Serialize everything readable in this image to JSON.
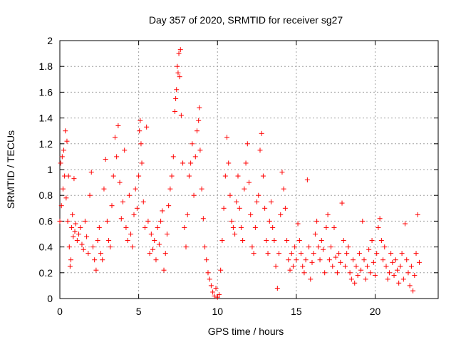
{
  "chart_data": {
    "type": "scatter",
    "title": "Day 357 of 2020, SRMTID for receiver sg27",
    "xlabel": "GPS time / hours",
    "ylabel": "SRMTID / TECUs",
    "xlim": [
      0,
      24
    ],
    "ylim": [
      0,
      2
    ],
    "xticks": [
      0,
      5,
      10,
      15,
      20
    ],
    "xtick_labels": [
      "0",
      "5",
      "10",
      "15",
      "20"
    ],
    "yticks": [
      0,
      0.2,
      0.4,
      0.6,
      0.8,
      1,
      1.2,
      1.4,
      1.6,
      1.8,
      2
    ],
    "ytick_labels": [
      "0",
      "0.2",
      "0.4",
      "0.6",
      "0.8",
      "1",
      "1.2",
      "1.4",
      "1.6",
      "1.8",
      "2"
    ],
    "grid": true,
    "marker": "+",
    "marker_color": "#ff0000",
    "series": [
      {
        "name": "sg27",
        "points": [
          [
            0.0,
            0.6
          ],
          [
            0.05,
            1.05
          ],
          [
            0.1,
            0.72
          ],
          [
            0.15,
            1.1
          ],
          [
            0.2,
            0.85
          ],
          [
            0.25,
            1.15
          ],
          [
            0.3,
            0.95
          ],
          [
            0.35,
            1.3
          ],
          [
            0.4,
            0.78
          ],
          [
            0.45,
            1.22
          ],
          [
            0.5,
            0.6
          ],
          [
            0.55,
            0.95
          ],
          [
            0.6,
            0.4
          ],
          [
            0.65,
            0.25
          ],
          [
            0.7,
            0.3
          ],
          [
            0.75,
            0.55
          ],
          [
            0.8,
            0.65
          ],
          [
            0.85,
            0.48
          ],
          [
            0.9,
            0.93
          ],
          [
            0.95,
            0.52
          ],
          [
            1.0,
            0.58
          ],
          [
            1.1,
            0.45
          ],
          [
            1.2,
            0.5
          ],
          [
            1.3,
            0.55
          ],
          [
            1.4,
            0.42
          ],
          [
            1.5,
            0.38
          ],
          [
            1.6,
            0.6
          ],
          [
            1.7,
            0.48
          ],
          [
            1.8,
            0.35
          ],
          [
            1.9,
            0.8
          ],
          [
            2.0,
            0.98
          ],
          [
            2.1,
            0.4
          ],
          [
            2.2,
            0.3
          ],
          [
            2.3,
            0.22
          ],
          [
            2.4,
            0.45
          ],
          [
            2.5,
            0.55
          ],
          [
            2.6,
            0.35
          ],
          [
            2.7,
            0.3
          ],
          [
            2.8,
            0.85
          ],
          [
            2.9,
            1.08
          ],
          [
            3.0,
            0.6
          ],
          [
            3.1,
            0.45
          ],
          [
            3.2,
            0.4
          ],
          [
            3.3,
            0.72
          ],
          [
            3.4,
            0.95
          ],
          [
            3.5,
            1.25
          ],
          [
            3.6,
            1.1
          ],
          [
            3.7,
            1.34
          ],
          [
            3.8,
            0.9
          ],
          [
            3.9,
            0.62
          ],
          [
            4.0,
            0.75
          ],
          [
            4.1,
            1.15
          ],
          [
            4.2,
            0.55
          ],
          [
            4.3,
            0.45
          ],
          [
            4.4,
            0.8
          ],
          [
            4.5,
            0.5
          ],
          [
            4.6,
            0.4
          ],
          [
            4.7,
            0.65
          ],
          [
            4.8,
            0.85
          ],
          [
            4.9,
            0.7
          ],
          [
            5.0,
            0.95
          ],
          [
            5.05,
            1.3
          ],
          [
            5.1,
            1.38
          ],
          [
            5.15,
            1.2
          ],
          [
            5.2,
            1.05
          ],
          [
            5.3,
            0.75
          ],
          [
            5.4,
            0.55
          ],
          [
            5.5,
            1.33
          ],
          [
            5.6,
            0.6
          ],
          [
            5.7,
            0.35
          ],
          [
            5.8,
            0.5
          ],
          [
            5.9,
            0.38
          ],
          [
            6.0,
            0.45
          ],
          [
            6.1,
            0.3
          ],
          [
            6.2,
            0.55
          ],
          [
            6.3,
            0.42
          ],
          [
            6.4,
            0.6
          ],
          [
            6.5,
            0.68
          ],
          [
            6.6,
            0.22
          ],
          [
            6.7,
            0.35
          ],
          [
            6.8,
            0.5
          ],
          [
            6.9,
            0.72
          ],
          [
            7.0,
            0.85
          ],
          [
            7.1,
            0.95
          ],
          [
            7.2,
            1.1
          ],
          [
            7.3,
            1.45
          ],
          [
            7.35,
            1.55
          ],
          [
            7.4,
            1.62
          ],
          [
            7.45,
            1.8
          ],
          [
            7.5,
            1.75
          ],
          [
            7.55,
            1.9
          ],
          [
            7.6,
            1.72
          ],
          [
            7.65,
            1.93
          ],
          [
            7.7,
            1.42
          ],
          [
            7.8,
            1.05
          ],
          [
            7.9,
            0.55
          ],
          [
            8.0,
            0.4
          ],
          [
            8.1,
            0.65
          ],
          [
            8.2,
            0.95
          ],
          [
            8.3,
            1.05
          ],
          [
            8.4,
            1.2
          ],
          [
            8.5,
            0.8
          ],
          [
            8.6,
            1.1
          ],
          [
            8.7,
            1.3
          ],
          [
            8.8,
            1.38
          ],
          [
            8.85,
            1.48
          ],
          [
            8.9,
            1.15
          ],
          [
            9.0,
            0.85
          ],
          [
            9.1,
            0.62
          ],
          [
            9.2,
            0.4
          ],
          [
            9.3,
            0.3
          ],
          [
            9.4,
            0.2
          ],
          [
            9.5,
            0.15
          ],
          [
            9.6,
            0.1
          ],
          [
            9.7,
            0.05
          ],
          [
            9.8,
            0.02
          ],
          [
            9.9,
            0.08
          ],
          [
            10.0,
            0.01
          ],
          [
            10.1,
            0.03
          ],
          [
            10.2,
            0.22
          ],
          [
            10.3,
            0.45
          ],
          [
            10.4,
            0.7
          ],
          [
            10.5,
            0.95
          ],
          [
            10.6,
            1.25
          ],
          [
            10.7,
            1.05
          ],
          [
            10.8,
            0.8
          ],
          [
            10.9,
            0.6
          ],
          [
            11.0,
            0.55
          ],
          [
            11.1,
            0.5
          ],
          [
            11.2,
            0.75
          ],
          [
            11.3,
            0.95
          ],
          [
            11.4,
            0.7
          ],
          [
            11.5,
            0.55
          ],
          [
            11.6,
            0.45
          ],
          [
            11.7,
            0.85
          ],
          [
            11.8,
            1.05
          ],
          [
            11.9,
            1.2
          ],
          [
            12.0,
            0.9
          ],
          [
            12.1,
            0.65
          ],
          [
            12.2,
            0.4
          ],
          [
            12.3,
            0.35
          ],
          [
            12.4,
            0.55
          ],
          [
            12.5,
            0.75
          ],
          [
            12.6,
            0.8
          ],
          [
            12.7,
            1.15
          ],
          [
            12.8,
            1.28
          ],
          [
            12.9,
            0.95
          ],
          [
            13.0,
            0.7
          ],
          [
            13.1,
            0.45
          ],
          [
            13.2,
            0.35
          ],
          [
            13.3,
            0.6
          ],
          [
            13.4,
            0.75
          ],
          [
            13.5,
            0.55
          ],
          [
            13.6,
            0.45
          ],
          [
            13.7,
            0.25
          ],
          [
            13.8,
            0.08
          ],
          [
            13.9,
            0.35
          ],
          [
            14.0,
            0.65
          ],
          [
            14.1,
            0.98
          ],
          [
            14.2,
            0.85
          ],
          [
            14.3,
            0.7
          ],
          [
            14.4,
            0.45
          ],
          [
            14.5,
            0.3
          ],
          [
            14.6,
            0.22
          ],
          [
            14.7,
            0.35
          ],
          [
            14.8,
            0.25
          ],
          [
            14.9,
            0.4
          ],
          [
            15.0,
            0.3
          ],
          [
            15.1,
            0.58
          ],
          [
            15.2,
            0.45
          ],
          [
            15.3,
            0.35
          ],
          [
            15.4,
            0.25
          ],
          [
            15.5,
            0.2
          ],
          [
            15.6,
            0.3
          ],
          [
            15.7,
            0.92
          ],
          [
            15.8,
            0.4
          ],
          [
            15.9,
            0.15
          ],
          [
            16.0,
            0.28
          ],
          [
            16.1,
            0.35
          ],
          [
            16.2,
            0.5
          ],
          [
            16.3,
            0.6
          ],
          [
            16.4,
            0.4
          ],
          [
            16.5,
            0.3
          ],
          [
            16.6,
            0.45
          ],
          [
            16.7,
            0.38
          ],
          [
            16.8,
            0.2
          ],
          [
            16.9,
            0.55
          ],
          [
            17.0,
            0.65
          ],
          [
            17.1,
            0.3
          ],
          [
            17.2,
            0.4
          ],
          [
            17.3,
            0.25
          ],
          [
            17.4,
            0.55
          ],
          [
            17.5,
            0.32
          ],
          [
            17.6,
            0.2
          ],
          [
            17.7,
            0.35
          ],
          [
            17.8,
            0.28
          ],
          [
            17.9,
            0.74
          ],
          [
            18.0,
            0.45
          ],
          [
            18.1,
            0.25
          ],
          [
            18.2,
            0.35
          ],
          [
            18.3,
            0.4
          ],
          [
            18.4,
            0.2
          ],
          [
            18.5,
            0.15
          ],
          [
            18.6,
            0.3
          ],
          [
            18.7,
            0.12
          ],
          [
            18.8,
            0.25
          ],
          [
            18.9,
            0.18
          ],
          [
            19.0,
            0.35
          ],
          [
            19.1,
            0.22
          ],
          [
            19.2,
            0.6
          ],
          [
            19.3,
            0.3
          ],
          [
            19.4,
            0.15
          ],
          [
            19.5,
            0.25
          ],
          [
            19.6,
            0.38
          ],
          [
            19.7,
            0.2
          ],
          [
            19.8,
            0.45
          ],
          [
            19.9,
            0.28
          ],
          [
            20.0,
            0.18
          ],
          [
            20.1,
            0.35
          ],
          [
            20.2,
            0.55
          ],
          [
            20.3,
            0.62
          ],
          [
            20.4,
            0.45
          ],
          [
            20.5,
            0.3
          ],
          [
            20.6,
            0.4
          ],
          [
            20.7,
            0.25
          ],
          [
            20.8,
            0.15
          ],
          [
            20.9,
            0.2
          ],
          [
            21.0,
            0.35
          ],
          [
            21.1,
            0.28
          ],
          [
            21.2,
            0.18
          ],
          [
            21.3,
            0.3
          ],
          [
            21.4,
            0.22
          ],
          [
            21.5,
            0.12
          ],
          [
            21.6,
            0.25
          ],
          [
            21.7,
            0.35
          ],
          [
            21.8,
            0.15
          ],
          [
            21.9,
            0.58
          ],
          [
            22.0,
            0.3
          ],
          [
            22.1,
            0.2
          ],
          [
            22.2,
            0.1
          ],
          [
            22.3,
            0.25
          ],
          [
            22.4,
            0.06
          ],
          [
            22.5,
            0.18
          ],
          [
            22.6,
            0.35
          ],
          [
            22.7,
            0.65
          ],
          [
            22.8,
            0.28
          ]
        ]
      }
    ]
  }
}
